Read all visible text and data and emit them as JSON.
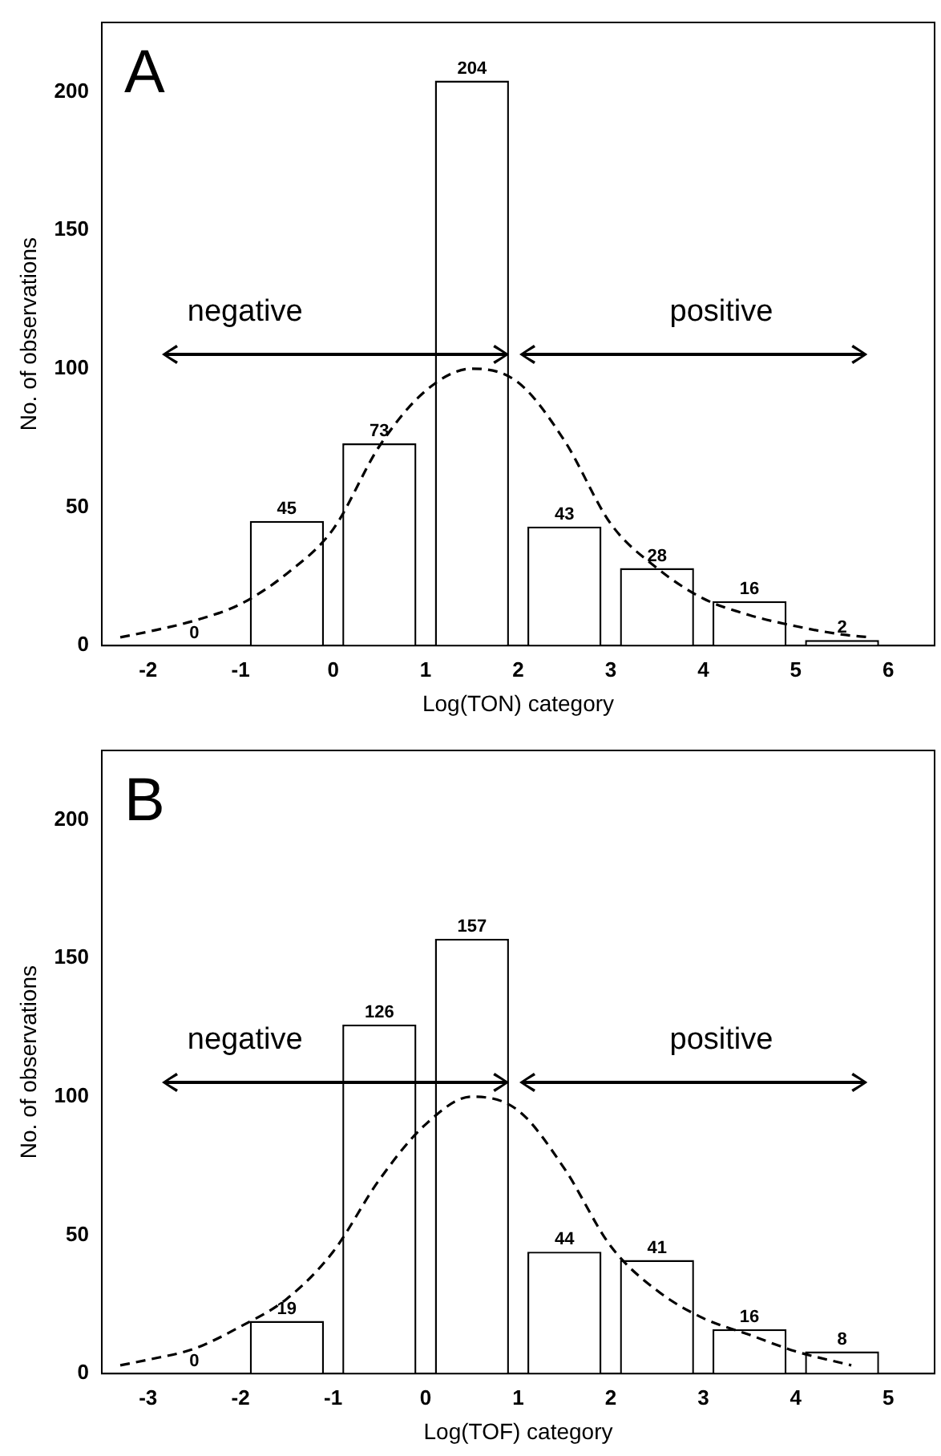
{
  "chart_data": [
    {
      "type": "bar",
      "title": "A",
      "xlabel": "Log(TON) category",
      "ylabel": "No. of observations",
      "x": [
        -1.5,
        -0.5,
        0.5,
        1.5,
        2.5,
        3.5,
        4.5,
        5.5
      ],
      "values": [
        0,
        45,
        73,
        204,
        43,
        28,
        16,
        2
      ],
      "value_labels": [
        "0",
        "45",
        "73",
        "204",
        "43",
        "28",
        "16",
        "2"
      ],
      "color": "#ffffff",
      "xlim": [
        -2.5,
        6.5
      ],
      "xticks": [
        -2,
        -1,
        0,
        1,
        2,
        3,
        4,
        5,
        6
      ],
      "ylim": [
        0,
        225
      ],
      "yticks": [
        0,
        50,
        100,
        150,
        200
      ],
      "series": [
        {
          "type": "line",
          "line_style": "dashed",
          "marker": "none",
          "color": "#000000",
          "x": [
            -2.3,
            -2,
            -1.5,
            -1,
            -0.5,
            0,
            0.5,
            1,
            1.5,
            2,
            2.5,
            3,
            3.5,
            4,
            4.5,
            5,
            5.5,
            5.8
          ],
          "values": [
            3,
            5,
            9,
            15,
            26,
            42,
            72,
            92,
            100,
            95,
            74,
            44,
            28,
            17,
            11,
            7,
            4,
            3
          ]
        }
      ],
      "annotations": [
        "negative",
        "positive"
      ]
    },
    {
      "type": "bar",
      "title": "B",
      "xlabel": "Log(TOF) category",
      "ylabel": "No. of observations",
      "x": [
        -2.5,
        -1.5,
        -0.5,
        0.5,
        1.5,
        2.5,
        3.5,
        4.5
      ],
      "values": [
        0,
        19,
        126,
        157,
        44,
        41,
        16,
        8
      ],
      "value_labels": [
        "0",
        "19",
        "126",
        "157",
        "44",
        "41",
        "16",
        "8"
      ],
      "color": "#ffffff",
      "xlim": [
        -3.5,
        5.5
      ],
      "xticks": [
        -3,
        -2,
        -1,
        0,
        1,
        2,
        3,
        4,
        5
      ],
      "ylim": [
        0,
        225
      ],
      "yticks": [
        0,
        50,
        100,
        150,
        200
      ],
      "series": [
        {
          "type": "line",
          "line_style": "dashed",
          "marker": "none",
          "color": "#000000",
          "x": [
            -3.3,
            -3,
            -2.5,
            -2,
            -1.5,
            -1,
            -0.5,
            0,
            0.5,
            1,
            1.5,
            2,
            2.5,
            3,
            3.5,
            4,
            4.6
          ],
          "values": [
            3,
            5,
            9,
            17,
            27,
            44,
            70,
            90,
            100,
            95,
            74,
            46,
            30,
            20,
            14,
            8,
            3
          ]
        }
      ],
      "annotations": [
        "negative",
        "positive"
      ]
    }
  ]
}
